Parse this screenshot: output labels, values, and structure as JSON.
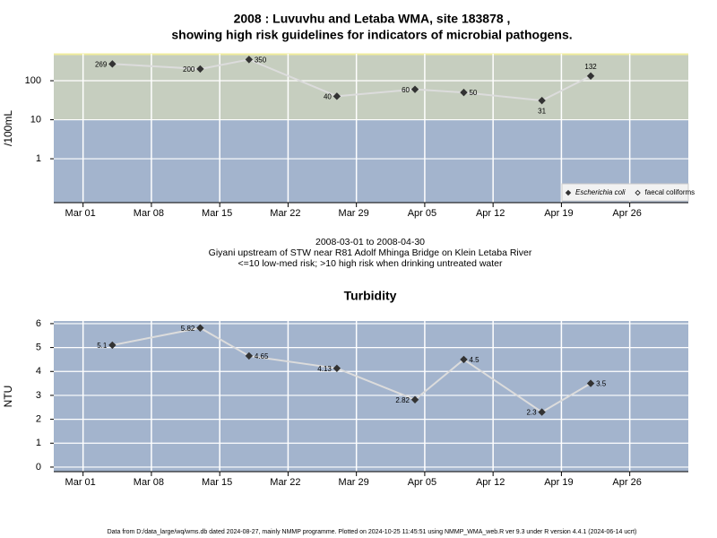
{
  "chart_data": [
    {
      "type": "line",
      "title": [
        "2008 : Luvuvhu and Letaba WMA, site 183878 ,",
        "showing high risk guidelines for indicators of microbial pathogens."
      ],
      "y_label": "/100mL",
      "log_scale": true,
      "grid": true,
      "legend": "lower right",
      "threshold": 10,
      "x": [
        "2008-03-04",
        "2008-03-13",
        "2008-03-18",
        "2008-03-27",
        "2008-04-04",
        "2008-04-09",
        "2008-04-17",
        "2008-04-22"
      ],
      "series": [
        {
          "name": "Escherichia coli",
          "color": "#333333",
          "marker": "diamond-filled",
          "values": [
            269,
            200,
            350,
            40,
            60,
            50,
            31,
            132
          ]
        },
        {
          "name": "faecal coliforms",
          "color": "#333333",
          "marker": "diamond-open",
          "values": [
            null,
            null,
            null,
            null,
            null,
            null,
            null,
            null
          ]
        }
      ],
      "xlim": [
        "2008-02-27",
        "2008-05-02"
      ],
      "xticks": [
        {
          "value": "2008-03-01",
          "label": "Mar 01"
        },
        {
          "value": "2008-03-08",
          "label": "Mar 08"
        },
        {
          "value": "2008-03-15",
          "label": "Mar 15"
        },
        {
          "value": "2008-03-22",
          "label": "Mar 22"
        },
        {
          "value": "2008-03-29",
          "label": "Mar 29"
        },
        {
          "value": "2008-04-05",
          "label": "Apr 05"
        },
        {
          "value": "2008-04-12",
          "label": "Apr 12"
        },
        {
          "value": "2008-04-19",
          "label": "Apr 19"
        },
        {
          "value": "2008-04-26",
          "label": "Apr 26"
        }
      ],
      "ylim": [
        0.075,
        490
      ],
      "yticks": [
        1,
        10,
        100
      ]
    },
    {
      "type": "line",
      "title": "Turbidity",
      "y_label": "NTU",
      "grid": true,
      "x": [
        "2008-03-04",
        "2008-03-13",
        "2008-03-18",
        "2008-03-27",
        "2008-04-04",
        "2008-04-09",
        "2008-04-17",
        "2008-04-22"
      ],
      "series": [
        {
          "name": "Turbidity",
          "color": "#333333",
          "marker": "diamond-filled",
          "values": [
            5.1,
            5.82,
            4.65,
            4.13,
            2.82,
            4.5,
            2.3,
            3.5
          ]
        }
      ],
      "xlim": [
        "2008-02-27",
        "2008-05-02"
      ],
      "xticks": [
        {
          "value": "2008-03-01",
          "label": "Mar 01"
        },
        {
          "value": "2008-03-08",
          "label": "Mar 08"
        },
        {
          "value": "2008-03-15",
          "label": "Mar 15"
        },
        {
          "value": "2008-03-22",
          "label": "Mar 22"
        },
        {
          "value": "2008-03-29",
          "label": "Mar 29"
        },
        {
          "value": "2008-04-05",
          "label": "Apr 05"
        },
        {
          "value": "2008-04-12",
          "label": "Apr 12"
        },
        {
          "value": "2008-04-19",
          "label": "Apr 19"
        },
        {
          "value": "2008-04-26",
          "label": "Apr 26"
        }
      ],
      "ylim": [
        -0.19,
        6.11
      ],
      "yticks": [
        0,
        1,
        2,
        3,
        4,
        5,
        6
      ]
    }
  ],
  "notes": [
    "2008-03-01 to 2008-04-30",
    "Giyani upstream of STW near R81 Adolf Mhinga Bridge on Klein Letaba River",
    "<=10 low-med risk; >10 high risk when drinking untreated water"
  ],
  "footer": "Data from D:/data_large/wq/wms.db dated 2024-08-27, mainly NMMP programme. Plotted on 2024-10-25 11:45:51 using NMMP_WMA_web.R ver 9.3 under R version 4.4.1 (2024-06-14 ucrt)"
}
